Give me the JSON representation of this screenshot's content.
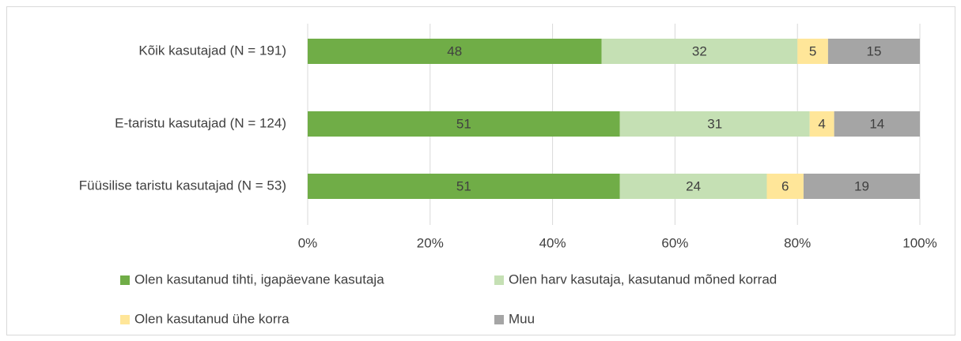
{
  "chart_data": {
    "type": "stacked_bar_horizontal",
    "categories": [
      "Kõik kasutajad (N = 191)",
      "E-taristu kasutajad (N = 124)",
      "Füüsilise taristu kasutajad (N = 53)"
    ],
    "series": [
      {
        "name": "Olen kasutanud tihti, igapäevane kasutaja",
        "color": "#70ad47",
        "values": [
          48,
          51,
          51
        ]
      },
      {
        "name": "Olen harv kasutaja, kasutanud mõned korrad",
        "color": "#c5e0b4",
        "values": [
          32,
          31,
          24
        ]
      },
      {
        "name": "Olen kasutanud ühe korra",
        "color": "#ffe699",
        "values": [
          5,
          4,
          6
        ]
      },
      {
        "name": "Muu",
        "color": "#a5a5a5",
        "values": [
          15,
          14,
          19
        ]
      }
    ],
    "xlim": [
      0,
      100
    ],
    "xticks": [
      {
        "value": 0,
        "label": "0%"
      },
      {
        "value": 20,
        "label": "20%"
      },
      {
        "value": 40,
        "label": "40%"
      },
      {
        "value": 60,
        "label": "60%"
      },
      {
        "value": 80,
        "label": "80%"
      },
      {
        "value": 100,
        "label": "100%"
      }
    ],
    "grid": true
  }
}
